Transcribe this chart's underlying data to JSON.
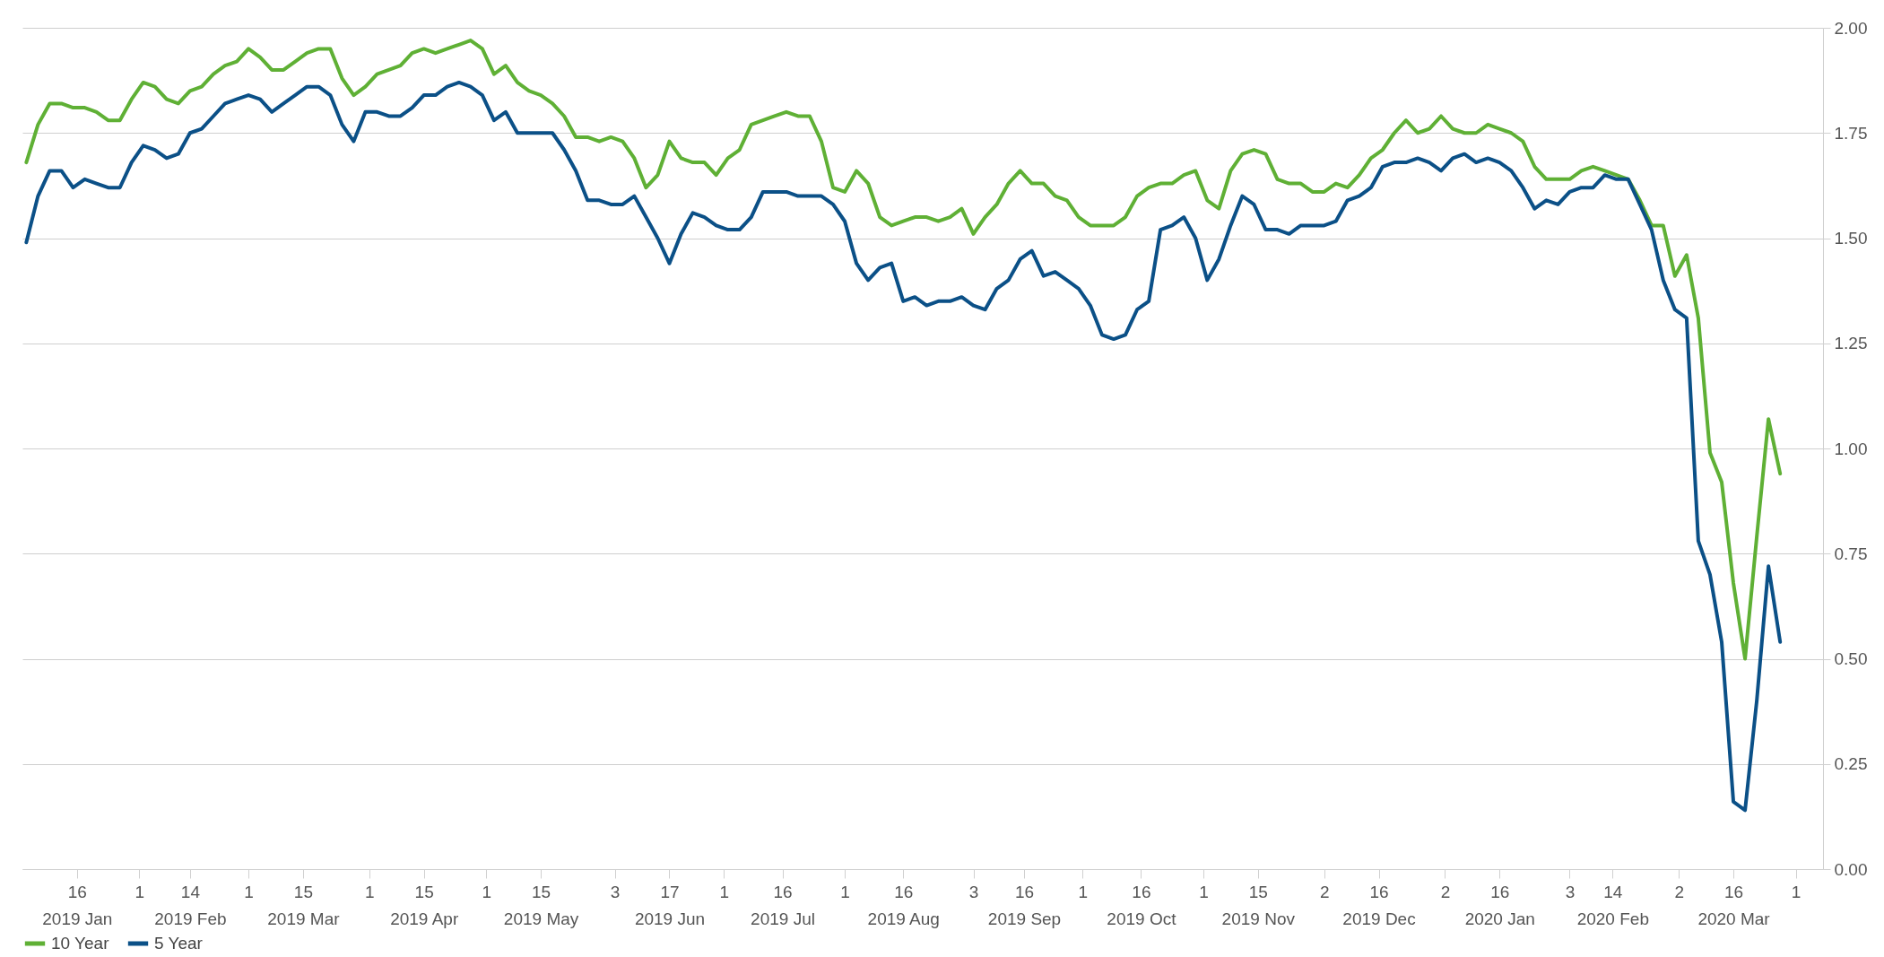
{
  "chart_data": {
    "type": "line",
    "x": [
      "2019-01-03",
      "2019-01-06",
      "2019-01-09",
      "2019-01-12",
      "2019-01-15",
      "2019-01-18",
      "2019-01-21",
      "2019-01-24",
      "2019-01-27",
      "2019-01-30",
      "2019-02-02",
      "2019-02-05",
      "2019-02-08",
      "2019-02-11",
      "2019-02-14",
      "2019-02-17",
      "2019-02-20",
      "2019-02-23",
      "2019-02-26",
      "2019-03-01",
      "2019-03-04",
      "2019-03-07",
      "2019-03-10",
      "2019-03-13",
      "2019-03-16",
      "2019-03-19",
      "2019-03-22",
      "2019-03-25",
      "2019-03-28",
      "2019-03-31",
      "2019-04-03",
      "2019-04-06",
      "2019-04-09",
      "2019-04-12",
      "2019-04-15",
      "2019-04-18",
      "2019-04-21",
      "2019-04-24",
      "2019-04-27",
      "2019-04-30",
      "2019-05-03",
      "2019-05-06",
      "2019-05-09",
      "2019-05-12",
      "2019-05-15",
      "2019-05-18",
      "2019-05-21",
      "2019-05-24",
      "2019-05-27",
      "2019-05-30",
      "2019-06-02",
      "2019-06-05",
      "2019-06-08",
      "2019-06-11",
      "2019-06-14",
      "2019-06-17",
      "2019-06-20",
      "2019-06-23",
      "2019-06-26",
      "2019-06-29",
      "2019-07-02",
      "2019-07-05",
      "2019-07-08",
      "2019-07-11",
      "2019-07-14",
      "2019-07-17",
      "2019-07-20",
      "2019-07-23",
      "2019-07-26",
      "2019-07-29",
      "2019-08-01",
      "2019-08-04",
      "2019-08-07",
      "2019-08-10",
      "2019-08-13",
      "2019-08-16",
      "2019-08-19",
      "2019-08-22",
      "2019-08-25",
      "2019-08-28",
      "2019-08-31",
      "2019-09-03",
      "2019-09-06",
      "2019-09-09",
      "2019-09-12",
      "2019-09-15",
      "2019-09-18",
      "2019-09-21",
      "2019-09-24",
      "2019-09-27",
      "2019-09-30",
      "2019-10-03",
      "2019-10-06",
      "2019-10-09",
      "2019-10-12",
      "2019-10-15",
      "2019-10-18",
      "2019-10-21",
      "2019-10-24",
      "2019-10-27",
      "2019-10-30",
      "2019-11-02",
      "2019-11-05",
      "2019-11-08",
      "2019-11-11",
      "2019-11-14",
      "2019-11-17",
      "2019-11-20",
      "2019-11-23",
      "2019-11-26",
      "2019-11-29",
      "2019-12-02",
      "2019-12-05",
      "2019-12-08",
      "2019-12-11",
      "2019-12-14",
      "2019-12-17",
      "2019-12-20",
      "2019-12-23",
      "2019-12-26",
      "2019-12-29",
      "2020-01-01",
      "2020-01-04",
      "2020-01-07",
      "2020-01-10",
      "2020-01-13",
      "2020-01-16",
      "2020-01-19",
      "2020-01-22",
      "2020-01-25",
      "2020-01-28",
      "2020-01-31",
      "2020-02-03",
      "2020-02-06",
      "2020-02-09",
      "2020-02-12",
      "2020-02-15",
      "2020-02-18",
      "2020-02-21",
      "2020-02-24",
      "2020-02-27",
      "2020-03-01",
      "2020-03-04",
      "2020-03-07",
      "2020-03-10",
      "2020-03-13",
      "2020-03-16",
      "2020-03-19",
      "2020-03-22",
      "2020-03-25",
      "2020-03-28"
    ],
    "series": [
      {
        "name": "10 Year",
        "color": "#5fb035",
        "values": [
          1.68,
          1.77,
          1.82,
          1.82,
          1.81,
          1.81,
          1.8,
          1.78,
          1.78,
          1.83,
          1.87,
          1.86,
          1.83,
          1.82,
          1.85,
          1.86,
          1.89,
          1.91,
          1.92,
          1.95,
          1.93,
          1.9,
          1.9,
          1.92,
          1.94,
          1.95,
          1.95,
          1.88,
          1.84,
          1.86,
          1.89,
          1.9,
          1.91,
          1.94,
          1.95,
          1.94,
          1.95,
          1.96,
          1.97,
          1.95,
          1.89,
          1.91,
          1.87,
          1.85,
          1.84,
          1.82,
          1.79,
          1.74,
          1.74,
          1.73,
          1.74,
          1.73,
          1.69,
          1.62,
          1.65,
          1.73,
          1.69,
          1.68,
          1.68,
          1.65,
          1.69,
          1.71,
          1.77,
          1.78,
          1.79,
          1.8,
          1.79,
          1.79,
          1.73,
          1.62,
          1.61,
          1.66,
          1.63,
          1.55,
          1.53,
          1.54,
          1.55,
          1.55,
          1.54,
          1.55,
          1.57,
          1.51,
          1.55,
          1.58,
          1.63,
          1.66,
          1.63,
          1.63,
          1.6,
          1.59,
          1.55,
          1.53,
          1.53,
          1.53,
          1.55,
          1.6,
          1.62,
          1.63,
          1.63,
          1.65,
          1.66,
          1.59,
          1.57,
          1.66,
          1.7,
          1.71,
          1.7,
          1.64,
          1.63,
          1.63,
          1.61,
          1.61,
          1.63,
          1.62,
          1.65,
          1.69,
          1.71,
          1.75,
          1.78,
          1.75,
          1.76,
          1.79,
          1.76,
          1.75,
          1.75,
          1.77,
          1.76,
          1.75,
          1.73,
          1.67,
          1.64,
          1.64,
          1.64,
          1.66,
          1.67,
          1.66,
          1.65,
          1.64,
          1.59,
          1.53,
          1.53,
          1.41,
          1.46,
          1.31,
          0.99,
          0.92,
          0.68,
          0.5,
          0.79,
          1.07,
          0.94
        ]
      },
      {
        "name": "5 Year",
        "color": "#0b5087",
        "values": [
          1.49,
          1.6,
          1.66,
          1.66,
          1.62,
          1.64,
          1.63,
          1.62,
          1.62,
          1.68,
          1.72,
          1.71,
          1.69,
          1.7,
          1.75,
          1.76,
          1.79,
          1.82,
          1.83,
          1.84,
          1.83,
          1.8,
          1.82,
          1.84,
          1.86,
          1.86,
          1.84,
          1.77,
          1.73,
          1.8,
          1.8,
          1.79,
          1.79,
          1.81,
          1.84,
          1.84,
          1.86,
          1.87,
          1.86,
          1.84,
          1.78,
          1.8,
          1.75,
          1.75,
          1.75,
          1.75,
          1.71,
          1.66,
          1.59,
          1.59,
          1.58,
          1.58,
          1.6,
          1.55,
          1.5,
          1.44,
          1.51,
          1.56,
          1.55,
          1.53,
          1.52,
          1.52,
          1.55,
          1.61,
          1.61,
          1.61,
          1.6,
          1.6,
          1.6,
          1.58,
          1.54,
          1.44,
          1.4,
          1.43,
          1.44,
          1.35,
          1.36,
          1.34,
          1.35,
          1.35,
          1.36,
          1.34,
          1.33,
          1.38,
          1.4,
          1.45,
          1.47,
          1.41,
          1.42,
          1.4,
          1.38,
          1.34,
          1.27,
          1.26,
          1.27,
          1.33,
          1.35,
          1.52,
          1.53,
          1.55,
          1.5,
          1.4,
          1.45,
          1.53,
          1.6,
          1.58,
          1.52,
          1.52,
          1.51,
          1.53,
          1.53,
          1.53,
          1.54,
          1.59,
          1.6,
          1.62,
          1.67,
          1.68,
          1.68,
          1.69,
          1.68,
          1.66,
          1.69,
          1.7,
          1.68,
          1.69,
          1.68,
          1.66,
          1.62,
          1.57,
          1.59,
          1.58,
          1.61,
          1.62,
          1.62,
          1.65,
          1.64,
          1.64,
          1.58,
          1.52,
          1.4,
          1.33,
          1.31,
          0.78,
          0.7,
          0.54,
          0.16,
          0.14,
          0.4,
          0.72,
          0.54
        ]
      }
    ],
    "xlim": [
      "2019-01-02",
      "2020-04-08"
    ],
    "xticks": [
      {
        "value": "2019-01-16",
        "label": "16\n2019 Jan"
      },
      {
        "value": "2019-02-01",
        "label": "1"
      },
      {
        "value": "2019-02-14",
        "label": "14\n2019 Feb"
      },
      {
        "value": "2019-03-01",
        "label": "1"
      },
      {
        "value": "2019-03-15",
        "label": "15\n2019 Mar"
      },
      {
        "value": "2019-04-01",
        "label": "1"
      },
      {
        "value": "2019-04-15",
        "label": "15\n2019 Apr"
      },
      {
        "value": "2019-05-01",
        "label": "1"
      },
      {
        "value": "2019-05-15",
        "label": "15\n2019 May"
      },
      {
        "value": "2019-06-03",
        "label": "3"
      },
      {
        "value": "2019-06-17",
        "label": "17\n2019 Jun"
      },
      {
        "value": "2019-07-01",
        "label": "1"
      },
      {
        "value": "2019-07-16",
        "label": "16\n2019 Jul"
      },
      {
        "value": "2019-08-01",
        "label": "1"
      },
      {
        "value": "2019-08-16",
        "label": "16\n2019 Aug"
      },
      {
        "value": "2019-09-03",
        "label": "3"
      },
      {
        "value": "2019-09-16",
        "label": "16\n2019 Sep"
      },
      {
        "value": "2019-10-01",
        "label": "1"
      },
      {
        "value": "2019-10-16",
        "label": "16\n2019 Oct"
      },
      {
        "value": "2019-11-01",
        "label": "1"
      },
      {
        "value": "2019-11-15",
        "label": "15\n2019 Nov"
      },
      {
        "value": "2019-12-02",
        "label": "2"
      },
      {
        "value": "2019-12-16",
        "label": "16\n2019 Dec"
      },
      {
        "value": "2020-01-02",
        "label": "2"
      },
      {
        "value": "2020-01-16",
        "label": "16\n2020 Jan"
      },
      {
        "value": "2020-02-03",
        "label": "3"
      },
      {
        "value": "2020-02-14",
        "label": "14\n2020 Feb"
      },
      {
        "value": "2020-03-02",
        "label": "2"
      },
      {
        "value": "2020-03-16",
        "label": "16\n2020 Mar"
      },
      {
        "value": "2020-04-01",
        "label": "1"
      }
    ],
    "ylim": [
      0,
      2
    ],
    "yticks": [
      {
        "value": 0,
        "label": "0.00"
      },
      {
        "value": 0.25,
        "label": "0.25"
      },
      {
        "value": 0.5,
        "label": "0.50"
      },
      {
        "value": 0.75,
        "label": "0.75"
      },
      {
        "value": 1,
        "label": "1.00"
      },
      {
        "value": 1.25,
        "label": "1.25"
      },
      {
        "value": 1.5,
        "label": "1.50"
      },
      {
        "value": 1.75,
        "label": "1.75"
      },
      {
        "value": 2,
        "label": "2.00"
      }
    ],
    "grid": "y",
    "legend": "bottom left"
  }
}
